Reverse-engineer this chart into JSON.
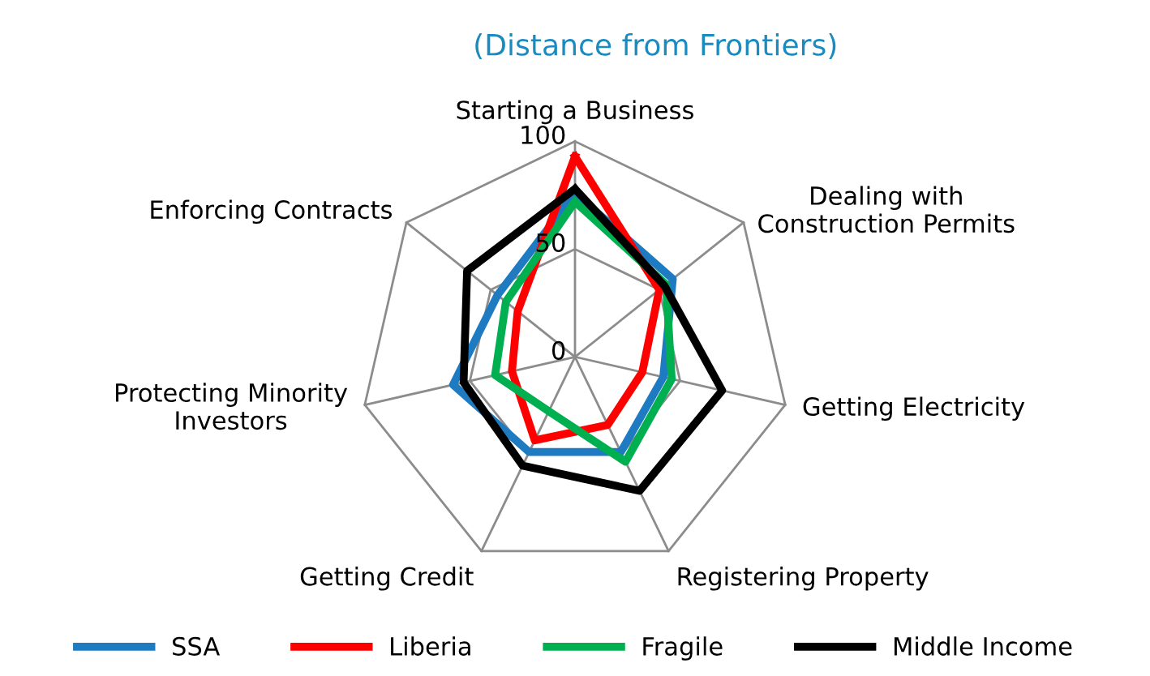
{
  "chart_data": {
    "type": "radar",
    "title": "(Distance from Frontiers)",
    "categories": [
      "Starting a Business",
      "Dealing with\nConstruction Permits",
      "Getting Electricity",
      "Registering Property",
      "Getting Credit",
      "Protecting Minority\nInvestors",
      "Enforcing Contracts"
    ],
    "series": [
      {
        "name": "SSA",
        "color": "#1f7bc1",
        "values": [
          76,
          58,
          42,
          49,
          49,
          58,
          46
        ]
      },
      {
        "name": "Liberia",
        "color": "#ff0000",
        "values": [
          93,
          50,
          32,
          35,
          43,
          30,
          34
        ]
      },
      {
        "name": "Fragile",
        "color": "#00b050",
        "values": [
          72,
          54,
          46,
          54,
          28,
          38,
          41
        ]
      },
      {
        "name": "Middle Income",
        "color": "#000000",
        "values": [
          78,
          53,
          70,
          69,
          56,
          53,
          64
        ]
      }
    ],
    "ylim": [
      0,
      100
    ],
    "yticks": [
      0,
      50,
      100
    ],
    "grid": true,
    "legend": "bottom"
  }
}
